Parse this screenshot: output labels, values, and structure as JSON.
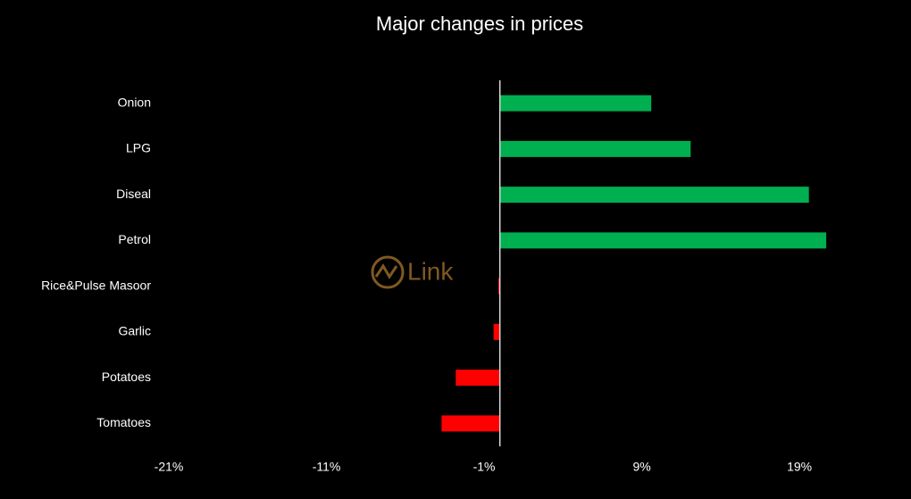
{
  "chart_data": {
    "type": "barh",
    "title": "Major changes in prices",
    "watermark": "Link",
    "categories": [
      "Onion",
      "LPG",
      "Diseal",
      "Petrol",
      "Rice&Pulse Masoor",
      "Garlic",
      "Potatoes",
      "Tomatoes"
    ],
    "values": [
      9.6,
      12.1,
      19.6,
      20.7,
      -0.1,
      -0.4,
      -2.8,
      -3.7
    ],
    "positive_color": "#00b050",
    "negative_color": "#ff0000",
    "xlim": [
      -21,
      25
    ],
    "xticks": [
      {
        "value": -21,
        "label": "-21%"
      },
      {
        "value": -11,
        "label": "-11%"
      },
      {
        "value": -1,
        "label": "-1%"
      },
      {
        "value": 9,
        "label": "9%"
      },
      {
        "value": 19,
        "label": "19%"
      }
    ],
    "grid": false
  }
}
